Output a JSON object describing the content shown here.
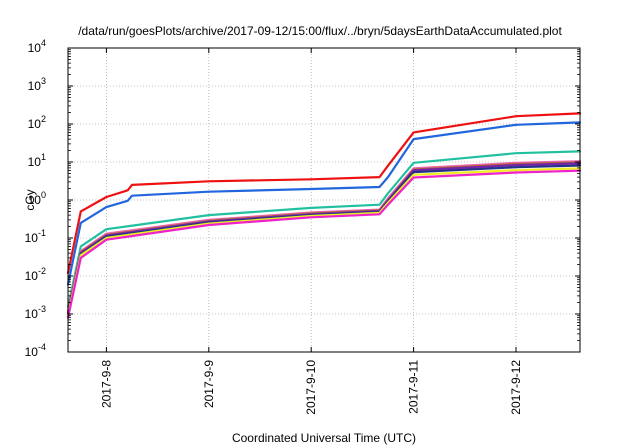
{
  "chart_data": {
    "type": "line",
    "title": "/data/run/goesPlots/archive/2017-09-12/15:00/flux/../bryn/5daysEarthDataAccumulated.plot",
    "xlabel": "Coordinated Universal Time (UTC)",
    "ylabel": "cGy",
    "yscale": "log",
    "ylim_exp": [
      -4,
      4
    ],
    "y_ticks": [
      {
        "base": "10",
        "exp": "-4"
      },
      {
        "base": "10",
        "exp": "-3"
      },
      {
        "base": "10",
        "exp": "-2"
      },
      {
        "base": "10",
        "exp": "-1"
      },
      {
        "base": "10",
        "exp": "0"
      },
      {
        "base": "10",
        "exp": "1"
      },
      {
        "base": "10",
        "exp": "2"
      },
      {
        "base": "10",
        "exp": "3"
      },
      {
        "base": "10",
        "exp": "4"
      }
    ],
    "xlim": [
      "2017-09-07T15:00",
      "2017-09-12T15:00"
    ],
    "x_ticks": [
      "2017-9-8",
      "2017-9-9",
      "2017-9-10",
      "2017-9-11",
      "2017-9-12"
    ],
    "grid": true,
    "legend": "none",
    "series": [
      {
        "color": "#ee1111",
        "x": [
          "2017-09-07T15:00",
          "2017-09-07T18:00",
          "2017-09-08T00:00",
          "2017-09-08T05:00",
          "2017-09-08T06:00",
          "2017-09-09T00:00",
          "2017-09-10T00:00",
          "2017-09-10T16:00",
          "2017-09-10T18:00",
          "2017-09-11T00:00",
          "2017-09-12T00:00",
          "2017-09-12T15:00"
        ],
        "y": [
          0.012,
          0.5,
          1.2,
          1.8,
          2.5,
          3.1,
          3.5,
          4.0,
          8,
          60,
          160,
          190
        ]
      },
      {
        "color": "#2266dd",
        "x": [
          "2017-09-07T15:00",
          "2017-09-07T18:00",
          "2017-09-08T00:00",
          "2017-09-08T05:00",
          "2017-09-08T06:00",
          "2017-09-09T00:00",
          "2017-09-10T00:00",
          "2017-09-10T16:00",
          "2017-09-10T18:00",
          "2017-09-11T00:00",
          "2017-09-12T00:00",
          "2017-09-12T15:00"
        ],
        "y": [
          0.006,
          0.25,
          0.65,
          0.95,
          1.3,
          1.65,
          1.95,
          2.2,
          4,
          40,
          95,
          110
        ]
      },
      {
        "color": "#22c0a0",
        "x": [
          "2017-09-07T15:00",
          "2017-09-07T18:00",
          "2017-09-08T00:00",
          "2017-09-09T00:00",
          "2017-09-10T00:00",
          "2017-09-10T16:00",
          "2017-09-10T18:00",
          "2017-09-11T00:00",
          "2017-09-12T00:00",
          "2017-09-12T15:00"
        ],
        "y": [
          0.0015,
          0.06,
          0.17,
          0.4,
          0.62,
          0.75,
          1.5,
          9.5,
          17,
          19
        ]
      },
      {
        "color": "#ee66aa",
        "x": [
          "2017-09-07T15:00",
          "2017-09-07T18:00",
          "2017-09-08T00:00",
          "2017-09-09T00:00",
          "2017-09-10T00:00",
          "2017-09-10T16:00",
          "2017-09-10T18:00",
          "2017-09-11T00:00",
          "2017-09-12T00:00",
          "2017-09-12T15:00"
        ],
        "y": [
          0.0012,
          0.045,
          0.13,
          0.3,
          0.47,
          0.56,
          1.1,
          6.8,
          9.5,
          10.5
        ]
      },
      {
        "color": "#aa6633",
        "x": [
          "2017-09-07T15:00",
          "2017-09-07T18:00",
          "2017-09-08T00:00",
          "2017-09-09T00:00",
          "2017-09-10T00:00",
          "2017-09-10T16:00",
          "2017-09-10T18:00",
          "2017-09-11T00:00",
          "2017-09-12T00:00",
          "2017-09-12T15:00"
        ],
        "y": [
          0.0011,
          0.042,
          0.12,
          0.28,
          0.44,
          0.53,
          1.0,
          6.3,
          8.8,
          9.7
        ]
      },
      {
        "color": "#7722aa",
        "x": [
          "2017-09-07T15:00",
          "2017-09-07T18:00",
          "2017-09-08T00:00",
          "2017-09-09T00:00",
          "2017-09-10T00:00",
          "2017-09-10T16:00",
          "2017-09-10T18:00",
          "2017-09-11T00:00",
          "2017-09-12T00:00",
          "2017-09-12T15:00"
        ],
        "y": [
          0.001,
          0.04,
          0.115,
          0.27,
          0.42,
          0.51,
          0.97,
          6.0,
          8.3,
          9.2
        ]
      },
      {
        "color": "#223388",
        "x": [
          "2017-09-07T15:00",
          "2017-09-07T18:00",
          "2017-09-08T00:00",
          "2017-09-09T00:00",
          "2017-09-10T00:00",
          "2017-09-10T16:00",
          "2017-09-10T18:00",
          "2017-09-11T00:00",
          "2017-09-12T00:00",
          "2017-09-12T15:00"
        ],
        "y": [
          0.00095,
          0.037,
          0.108,
          0.255,
          0.4,
          0.48,
          0.9,
          5.4,
          7.3,
          8.1
        ]
      },
      {
        "color": "#eeee22",
        "x": [
          "2017-09-07T15:00",
          "2017-09-07T18:00",
          "2017-09-08T00:00",
          "2017-09-09T00:00",
          "2017-09-10T00:00",
          "2017-09-10T16:00",
          "2017-09-10T18:00",
          "2017-09-11T00:00",
          "2017-09-12T00:00",
          "2017-09-12T15:00"
        ],
        "y": [
          0.0009,
          0.035,
          0.1,
          0.24,
          0.38,
          0.46,
          0.85,
          4.6,
          6.1,
          6.8
        ]
      },
      {
        "color": "#ee22cc",
        "x": [
          "2017-09-07T15:00",
          "2017-09-07T18:00",
          "2017-09-08T00:00",
          "2017-09-09T00:00",
          "2017-09-10T00:00",
          "2017-09-10T16:00",
          "2017-09-10T18:00",
          "2017-09-11T00:00",
          "2017-09-12T00:00",
          "2017-09-12T15:00"
        ],
        "y": [
          0.0008,
          0.03,
          0.09,
          0.22,
          0.35,
          0.42,
          0.75,
          3.9,
          5.3,
          5.9
        ]
      }
    ]
  }
}
